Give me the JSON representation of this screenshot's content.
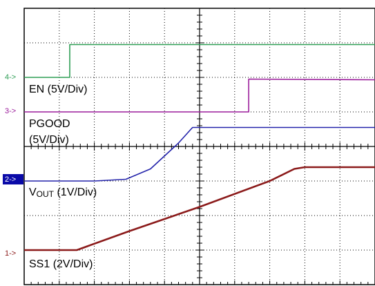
{
  "chart_data": {
    "type": "line",
    "title": "",
    "xlabel": "",
    "ylabel": "",
    "x_divisions": 10,
    "y_divisions": 8,
    "grid": true,
    "legend": "none",
    "xlim": [
      0,
      10
    ],
    "ylim": [
      0,
      8
    ],
    "series": [
      {
        "name": "EN (5V/Div)",
        "channel": "4",
        "marker": "4->",
        "color": "#2e9e55",
        "ground_div": 6.0,
        "x": [
          0,
          1.3,
          1.3,
          10
        ],
        "y": [
          6.0,
          6.0,
          6.95,
          6.95
        ]
      },
      {
        "name": "PGOOD (5V/Div)",
        "label_line1": "PGOOD",
        "label_line2": "(5V/Div)",
        "channel": "3",
        "marker": "3->",
        "color": "#9b1c9b",
        "ground_div": 5.0,
        "x": [
          0,
          6.4,
          6.4,
          10
        ],
        "y": [
          5.0,
          5.0,
          5.95,
          5.93
        ]
      },
      {
        "name": "VOUT (1V/Div)",
        "label_main": "V",
        "label_sub": "OUT",
        "label_rest": " (1V/Div)",
        "channel": "2",
        "marker": "2->",
        "color": "#2222aa",
        "ground_div": 3.0,
        "x": [
          0,
          1.0,
          2.0,
          2.9,
          3.6,
          4.4,
          4.8,
          6.0,
          10
        ],
        "y": [
          3.0,
          3.0,
          3.0,
          3.05,
          3.35,
          4.1,
          4.55,
          4.55,
          4.55
        ]
      },
      {
        "name": "SS1 (2V/Div)",
        "channel": "1",
        "marker": "1->",
        "color": "#8b1a1a",
        "ground_div": 1.0,
        "x": [
          0,
          1.5,
          3.0,
          5.0,
          7.0,
          7.7,
          8.0,
          10
        ],
        "y": [
          1.0,
          1.0,
          1.55,
          2.25,
          3.0,
          3.35,
          3.4,
          3.4
        ]
      }
    ]
  }
}
